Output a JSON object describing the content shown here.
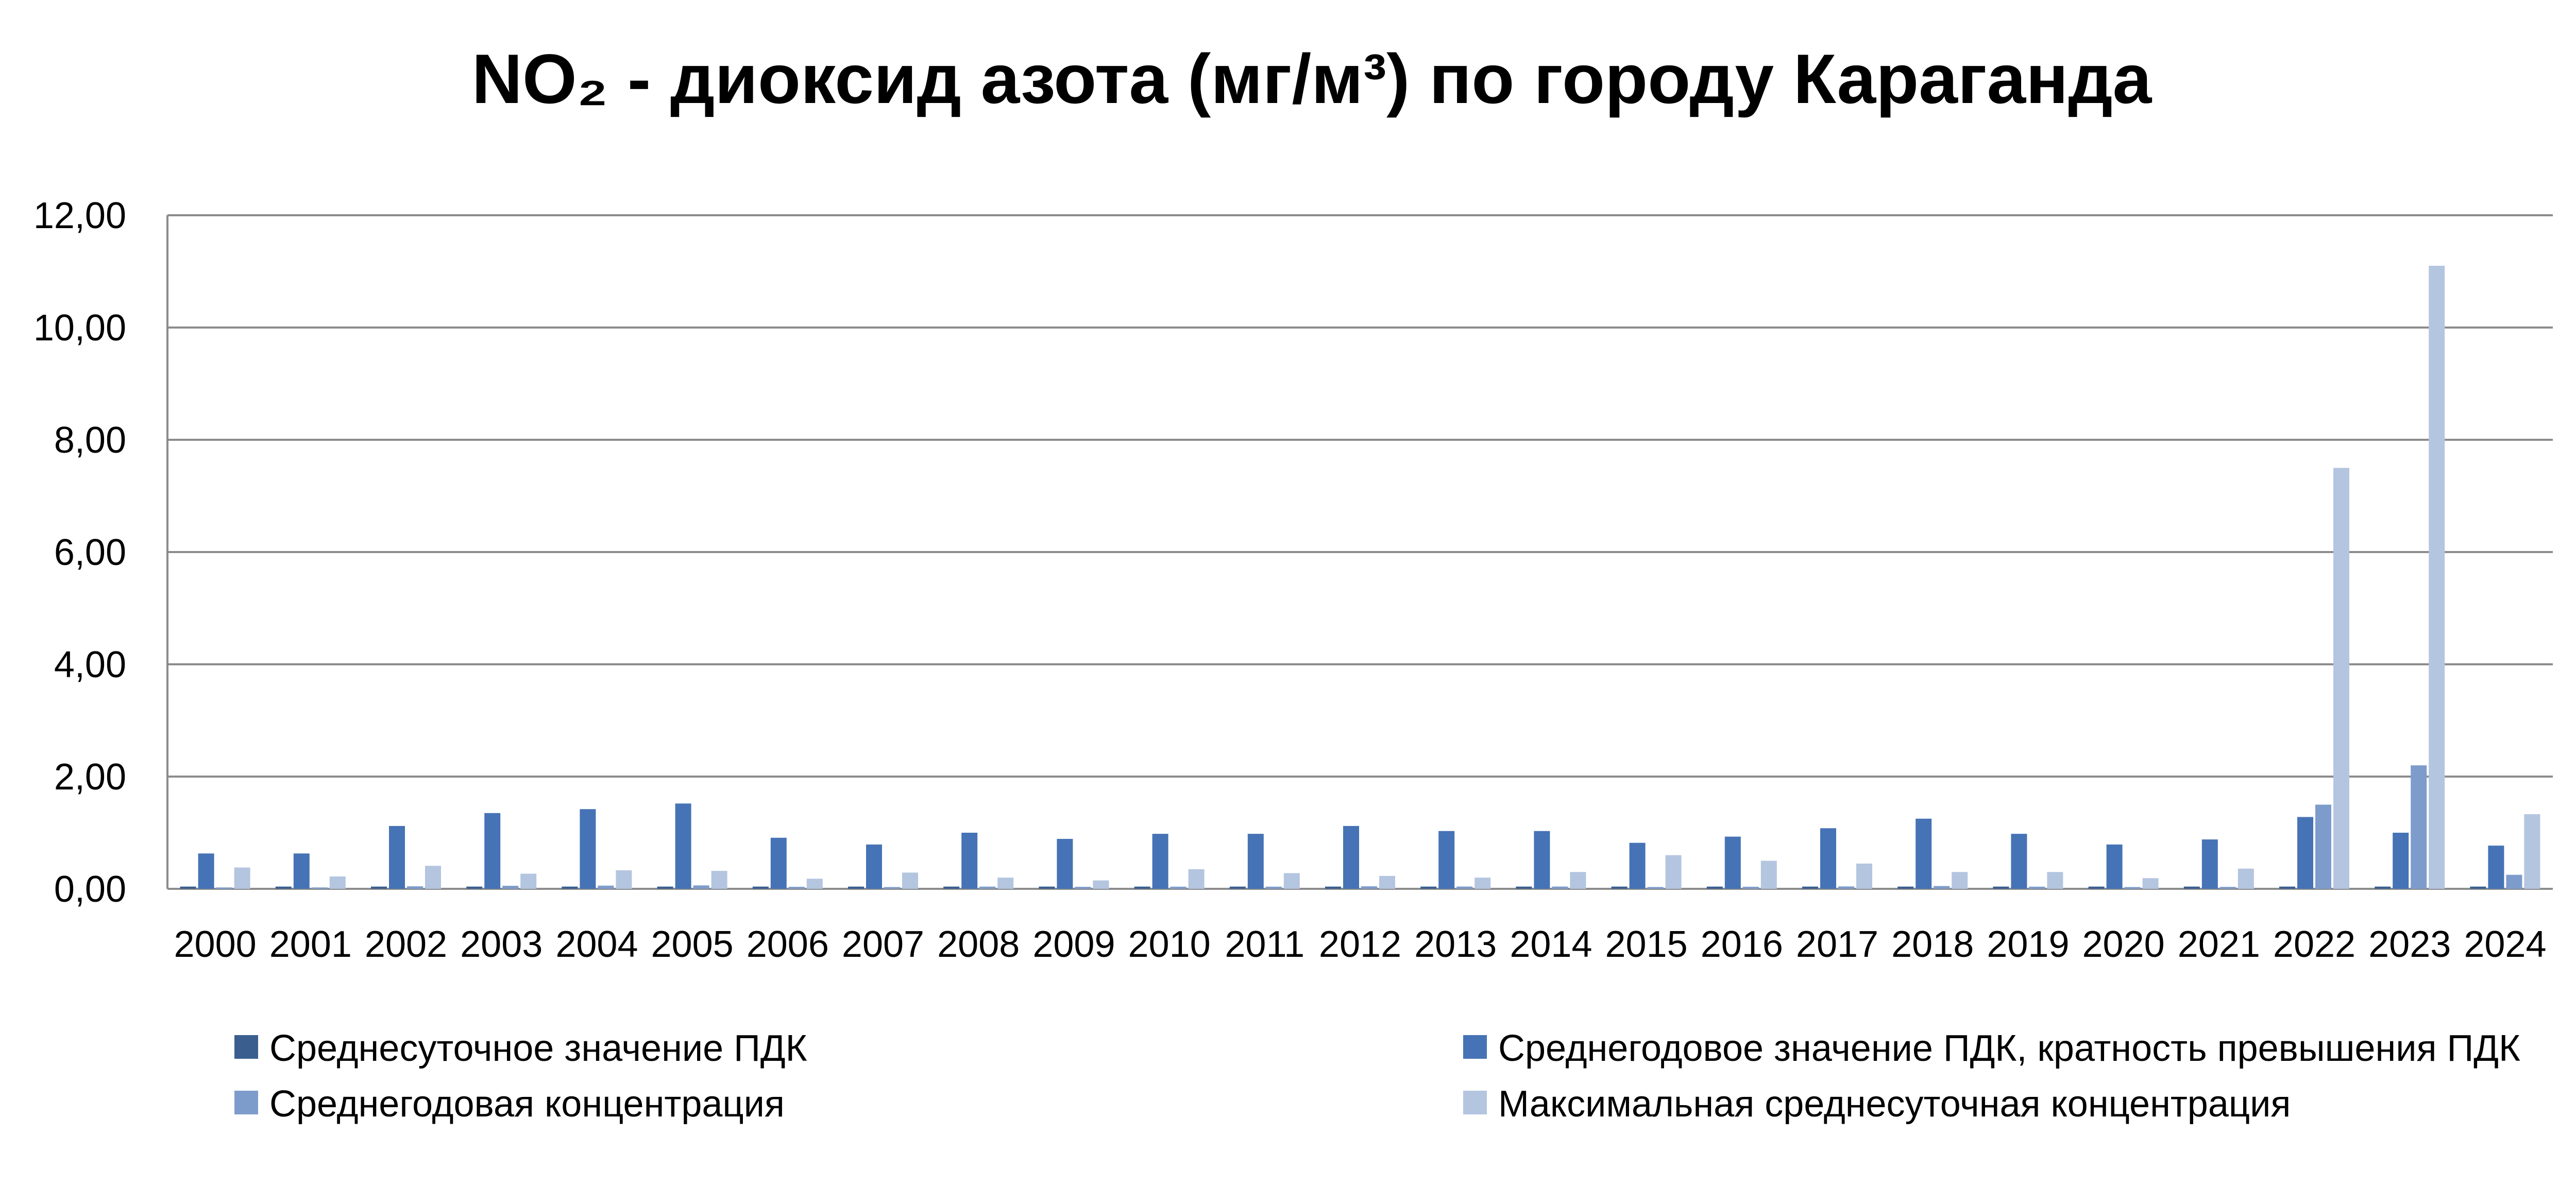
{
  "chart_data": {
    "type": "bar",
    "title": "NO₂ - диоксид азота (мг/м³) по городу Караганда",
    "categories": [
      "2000",
      "2001",
      "2002",
      "2003",
      "2004",
      "2005",
      "2006",
      "2007",
      "2008",
      "2009",
      "2010",
      "2011",
      "2012",
      "2013",
      "2014",
      "2015",
      "2016",
      "2017",
      "2018",
      "2019",
      "2020",
      "2021",
      "2022",
      "2023",
      "2024"
    ],
    "yticks": [
      "0,00",
      "2,00",
      "4,00",
      "6,00",
      "8,00",
      "10,00",
      "12,00"
    ],
    "ylim": [
      0,
      12
    ],
    "grid": true,
    "legend_position": "bottom",
    "series": [
      {
        "name": "Среднесуточное значение ПДК",
        "color": "#3a5f8f",
        "values": [
          0.04,
          0.04,
          0.04,
          0.04,
          0.04,
          0.04,
          0.04,
          0.04,
          0.04,
          0.04,
          0.04,
          0.04,
          0.04,
          0.04,
          0.04,
          0.04,
          0.04,
          0.04,
          0.04,
          0.04,
          0.04,
          0.04,
          0.04,
          0.04,
          0.04
        ]
      },
      {
        "name": "Среднегодовое значение ПДК, кратность превышения ПДК",
        "color": "#4673b5",
        "values": [
          0.63,
          0.63,
          1.12,
          1.35,
          1.42,
          1.52,
          0.91,
          0.79,
          1.0,
          0.89,
          0.98,
          0.98,
          1.12,
          1.03,
          1.03,
          0.82,
          0.93,
          1.08,
          1.25,
          0.98,
          0.79,
          0.88,
          1.28,
          1.0,
          0.77
        ]
      },
      {
        "name": "Среднегодовая концентрация",
        "color": "#7e9ccb",
        "values": [
          0.025,
          0.025,
          0.045,
          0.054,
          0.057,
          0.061,
          0.036,
          0.032,
          0.04,
          0.036,
          0.039,
          0.039,
          0.045,
          0.041,
          0.041,
          0.033,
          0.037,
          0.043,
          0.05,
          0.039,
          0.032,
          0.035,
          1.5,
          2.2,
          0.25
        ]
      },
      {
        "name": "Максимальная среднесуточная концентрация",
        "color": "#b4c5e0",
        "values": [
          0.38,
          0.22,
          0.41,
          0.27,
          0.33,
          0.32,
          0.18,
          0.29,
          0.2,
          0.15,
          0.35,
          0.28,
          0.23,
          0.2,
          0.3,
          0.6,
          0.5,
          0.45,
          0.3,
          0.3,
          0.19,
          0.36,
          7.5,
          11.1,
          1.33
        ]
      }
    ]
  }
}
